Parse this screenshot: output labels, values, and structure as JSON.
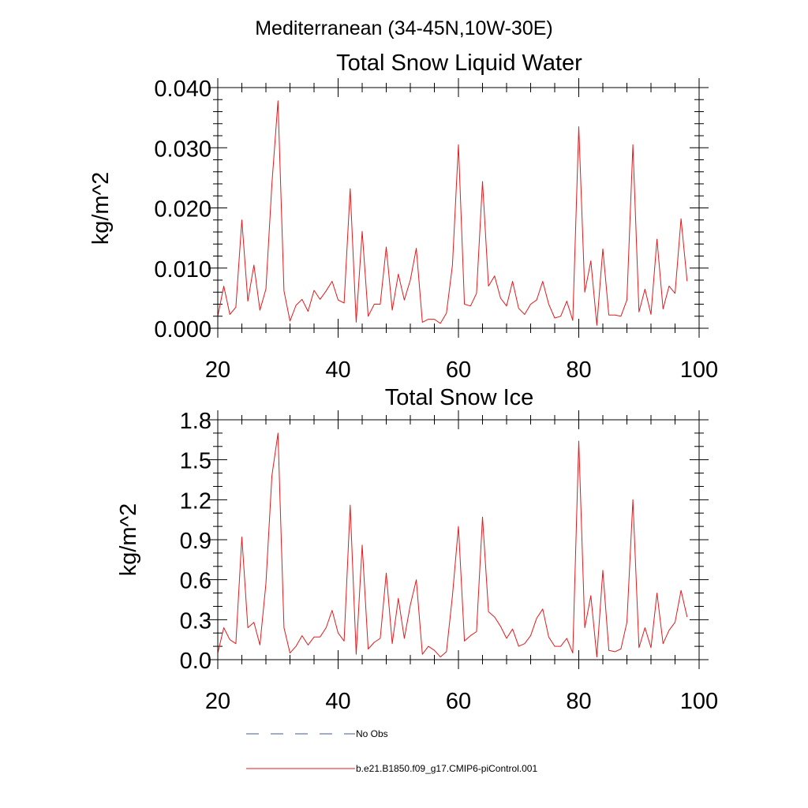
{
  "figure": {
    "region_title": "Mediterranean (34-45N,10W-30E)"
  },
  "legend": {
    "items": [
      {
        "label": "No Obs",
        "color": "#4a5a8a",
        "style": "dashed"
      },
      {
        "label": "b.e21.B1850.f09_g17.CMIP6-piControl.001",
        "color": "#e31a1c",
        "style": "solid"
      }
    ]
  },
  "chart_data": [
    {
      "type": "line",
      "title": "Total Snow Liquid Water",
      "xlabel": "",
      "ylabel": "kg/m^2",
      "xlim": [
        20,
        100
      ],
      "ylim": [
        0,
        0.04
      ],
      "x_ticks": [
        20,
        40,
        60,
        80,
        100
      ],
      "x_tick_labels": [
        "20",
        "40",
        "60",
        "80",
        "100"
      ],
      "y_ticks": [
        0,
        0.01,
        0.02,
        0.03,
        0.04
      ],
      "y_tick_labels": [
        "0.000",
        "0.010",
        "0.020",
        "0.030",
        "0.040"
      ],
      "x_minor": 5,
      "y_minor": 5,
      "series": [
        {
          "name": "b.e21.B1850.f09_g17.CMIP6-piControl.001",
          "color": "#e31a1c",
          "x": [
            20,
            21,
            22,
            23,
            24,
            25,
            26,
            27,
            28,
            29,
            30,
            31,
            32,
            33,
            34,
            35,
            36,
            37,
            38,
            39,
            40,
            41,
            42,
            43,
            44,
            45,
            46,
            47,
            48,
            49,
            50,
            51,
            52,
            53,
            54,
            55,
            56,
            57,
            58,
            59,
            60,
            61,
            62,
            63,
            64,
            65,
            66,
            67,
            68,
            69,
            70,
            71,
            72,
            73,
            74,
            75,
            76,
            77,
            78,
            79,
            80,
            81,
            82,
            83,
            84,
            85,
            86,
            87,
            88,
            89,
            90,
            91,
            92,
            93,
            94,
            95,
            96,
            97,
            98
          ],
          "y": [
            0.002,
            0.007,
            0.0023,
            0.0035,
            0.018,
            0.0045,
            0.0105,
            0.003,
            0.0065,
            0.024,
            0.0378,
            0.0062,
            0.0012,
            0.0038,
            0.0048,
            0.0028,
            0.0063,
            0.0048,
            0.0062,
            0.0078,
            0.0047,
            0.0042,
            0.0232,
            0.001,
            0.0161,
            0.002,
            0.004,
            0.004,
            0.0135,
            0.003,
            0.009,
            0.0047,
            0.008,
            0.0133,
            0.001,
            0.0015,
            0.0015,
            0.0008,
            0.0025,
            0.0105,
            0.0305,
            0.004,
            0.0037,
            0.0058,
            0.0244,
            0.007,
            0.0087,
            0.005,
            0.0037,
            0.0078,
            0.0033,
            0.0023,
            0.004,
            0.0047,
            0.0078,
            0.004,
            0.0017,
            0.002,
            0.0045,
            0.0013,
            0.0335,
            0.006,
            0.0112,
            0.0005,
            0.0132,
            0.0022,
            0.0022,
            0.002,
            0.0047,
            0.0305,
            0.0027,
            0.0065,
            0.0023,
            0.0148,
            0.0032,
            0.007,
            0.0058,
            0.0182,
            0.0078
          ]
        }
      ]
    },
    {
      "type": "line",
      "title": "Total Snow Ice",
      "xlabel": "",
      "ylabel": "kg/m^2",
      "xlim": [
        20,
        100
      ],
      "ylim": [
        0,
        1.8
      ],
      "x_ticks": [
        20,
        40,
        60,
        80,
        100
      ],
      "x_tick_labels": [
        "20",
        "40",
        "60",
        "80",
        "100"
      ],
      "y_ticks": [
        0,
        0.3,
        0.6,
        0.9,
        1.2,
        1.5,
        1.8
      ],
      "y_tick_labels": [
        "0.0",
        "0.3",
        "0.6",
        "0.9",
        "1.2",
        "1.5",
        "1.8"
      ],
      "x_minor": 5,
      "y_minor": 3,
      "series": [
        {
          "name": "b.e21.B1850.f09_g17.CMIP6-piControl.001",
          "color": "#e31a1c",
          "x": [
            20,
            21,
            22,
            23,
            24,
            25,
            26,
            27,
            28,
            29,
            30,
            31,
            32,
            33,
            34,
            35,
            36,
            37,
            38,
            39,
            40,
            41,
            42,
            43,
            44,
            45,
            46,
            47,
            48,
            49,
            50,
            51,
            52,
            53,
            54,
            55,
            56,
            57,
            58,
            59,
            60,
            61,
            62,
            63,
            64,
            65,
            66,
            67,
            68,
            69,
            70,
            71,
            72,
            73,
            74,
            75,
            76,
            77,
            78,
            79,
            80,
            81,
            82,
            83,
            84,
            85,
            86,
            87,
            88,
            89,
            90,
            91,
            92,
            93,
            94,
            95,
            96,
            97,
            98
          ],
          "y": [
            0.05,
            0.24,
            0.15,
            0.12,
            0.92,
            0.24,
            0.28,
            0.11,
            0.57,
            1.38,
            1.7,
            0.24,
            0.05,
            0.1,
            0.18,
            0.11,
            0.17,
            0.17,
            0.24,
            0.37,
            0.2,
            0.14,
            1.16,
            0.04,
            0.86,
            0.08,
            0.13,
            0.16,
            0.65,
            0.12,
            0.46,
            0.16,
            0.41,
            0.6,
            0.04,
            0.1,
            0.07,
            0.02,
            0.06,
            0.48,
            1.0,
            0.14,
            0.18,
            0.21,
            1.07,
            0.36,
            0.32,
            0.25,
            0.16,
            0.23,
            0.1,
            0.12,
            0.18,
            0.31,
            0.38,
            0.17,
            0.1,
            0.1,
            0.16,
            0.05,
            1.64,
            0.24,
            0.48,
            0.02,
            0.67,
            0.07,
            0.06,
            0.08,
            0.28,
            1.2,
            0.09,
            0.24,
            0.09,
            0.5,
            0.12,
            0.22,
            0.28,
            0.52,
            0.32
          ]
        }
      ]
    }
  ]
}
